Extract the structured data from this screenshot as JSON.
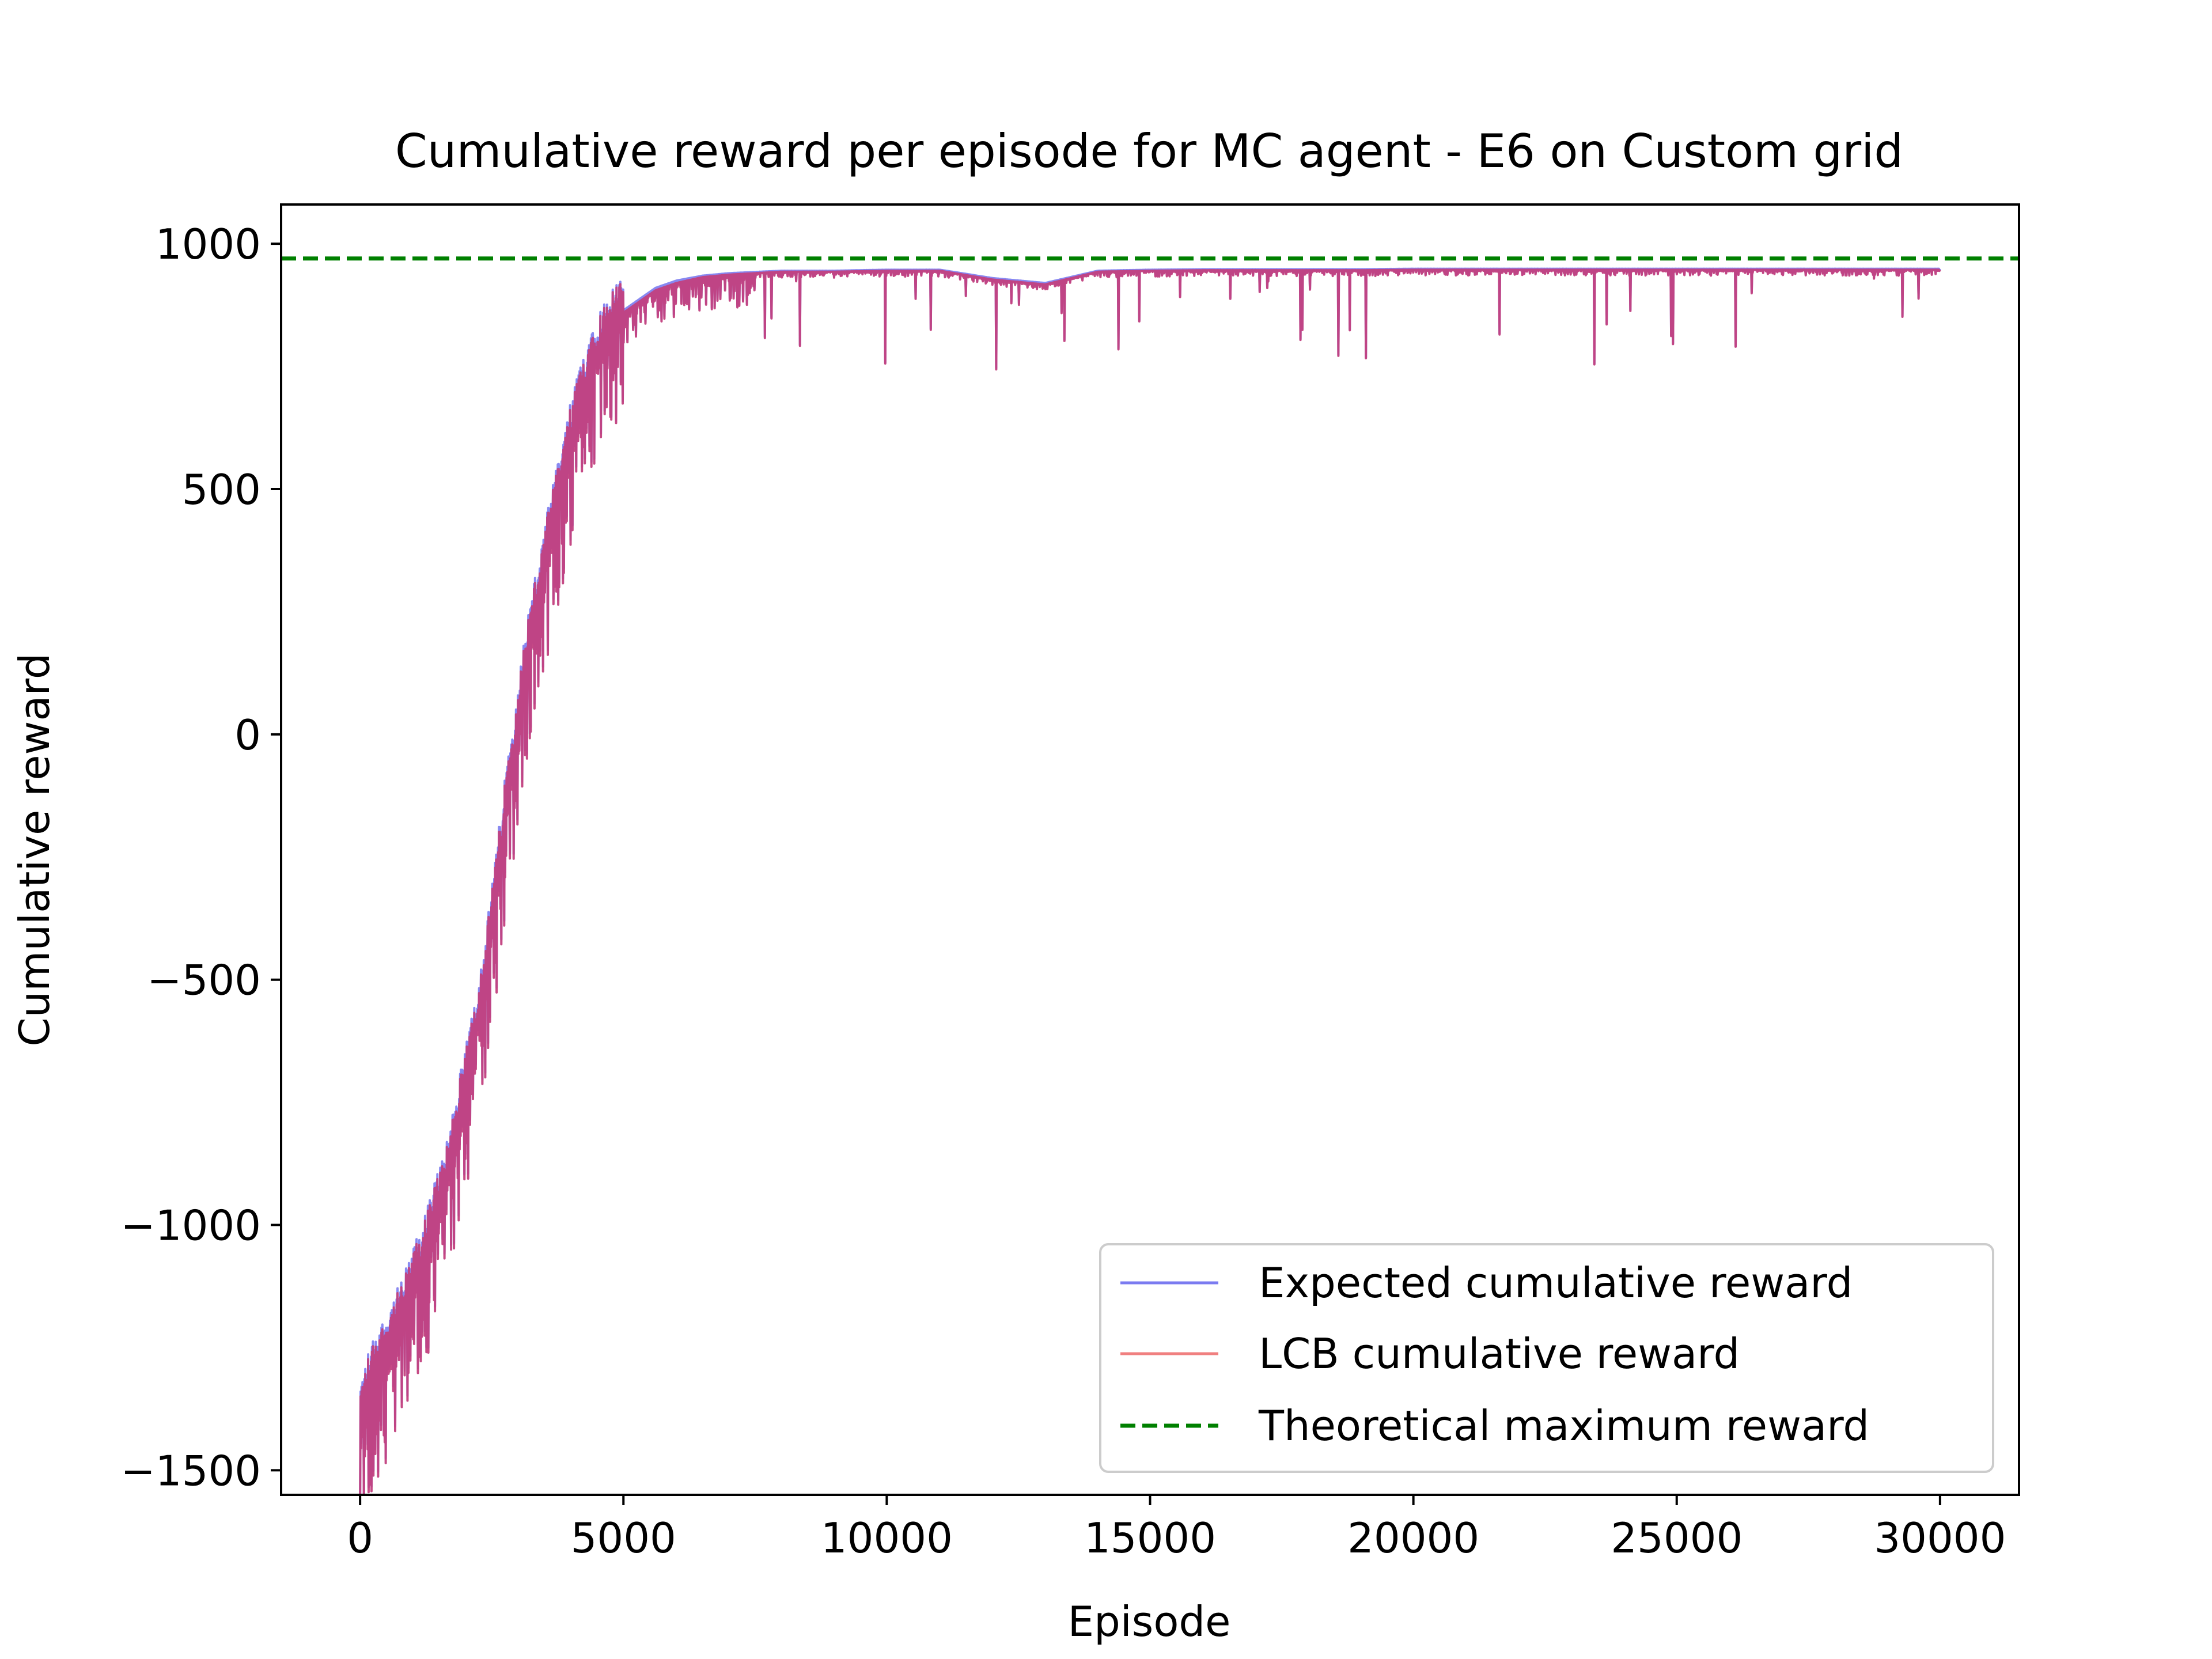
{
  "chart_data": {
    "type": "line",
    "title": "Cumulative reward per episode for MC agent - E6 on Custom grid",
    "xlabel": "Episode",
    "ylabel": "Cumulative reward",
    "xlim": [
      -1500,
      31500
    ],
    "ylim": [
      -1550,
      1080
    ],
    "xticks": [
      0,
      5000,
      10000,
      15000,
      20000,
      25000,
      30000
    ],
    "xtick_labels": [
      "0",
      "5000",
      "10000",
      "15000",
      "20000",
      "25000",
      "30000"
    ],
    "yticks": [
      -1500,
      -1000,
      -500,
      0,
      500,
      1000
    ],
    "ytick_labels": [
      "−1500",
      "−1000",
      "−500",
      "0",
      "500",
      "1000"
    ],
    "grid": false,
    "legend": {
      "placement": "lower-right"
    },
    "series": [
      {
        "name": "Expected cumulative reward",
        "color": "#7b7bf0",
        "style": "solid",
        "x": [
          0,
          200,
          500,
          800,
          1200,
          1600,
          2000,
          2400,
          2800,
          3200,
          3600,
          4000,
          4400,
          4800,
          5200,
          5600,
          6000,
          6500,
          7000,
          8000,
          9000,
          10000,
          11000,
          12000,
          13000,
          14000,
          15000,
          16000,
          17000,
          18000,
          19000,
          20000,
          22000,
          24000,
          26000,
          28000,
          30000
        ],
        "y": [
          -1380,
          -1300,
          -1240,
          -1170,
          -1050,
          -900,
          -700,
          -450,
          -100,
          200,
          420,
          620,
          780,
          850,
          880,
          910,
          925,
          935,
          940,
          945,
          945,
          947,
          947,
          930,
          920,
          945,
          947,
          948,
          948,
          948,
          948,
          949,
          949,
          949,
          949,
          949,
          949
        ]
      },
      {
        "name": "LCB cumulative reward",
        "color": "#f08080",
        "style": "solid",
        "x": [
          0,
          200,
          500,
          800,
          1200,
          1600,
          2000,
          2400,
          2800,
          3200,
          3600,
          4000,
          4400,
          4800,
          5200,
          5600,
          6000,
          6500,
          7000,
          8000,
          9000,
          10000,
          11000,
          12000,
          13000,
          14000,
          15000,
          16000,
          17000,
          18000,
          19000,
          20000,
          22000,
          24000,
          26000,
          28000,
          30000
        ],
        "y": [
          -1390,
          -1310,
          -1250,
          -1180,
          -1060,
          -910,
          -710,
          -460,
          -110,
          190,
          410,
          610,
          770,
          845,
          875,
          905,
          920,
          932,
          937,
          943,
          943,
          945,
          945,
          927,
          917,
          943,
          945,
          946,
          946,
          946,
          946,
          947,
          947,
          947,
          947,
          947,
          947
        ]
      },
      {
        "name": "Theoretical maximum reward",
        "color": "#008000",
        "style": "dashed",
        "x": [
          -1500,
          31500
        ],
        "y": [
          970,
          970
        ]
      }
    ],
    "overlap_color": "#c2407e"
  }
}
